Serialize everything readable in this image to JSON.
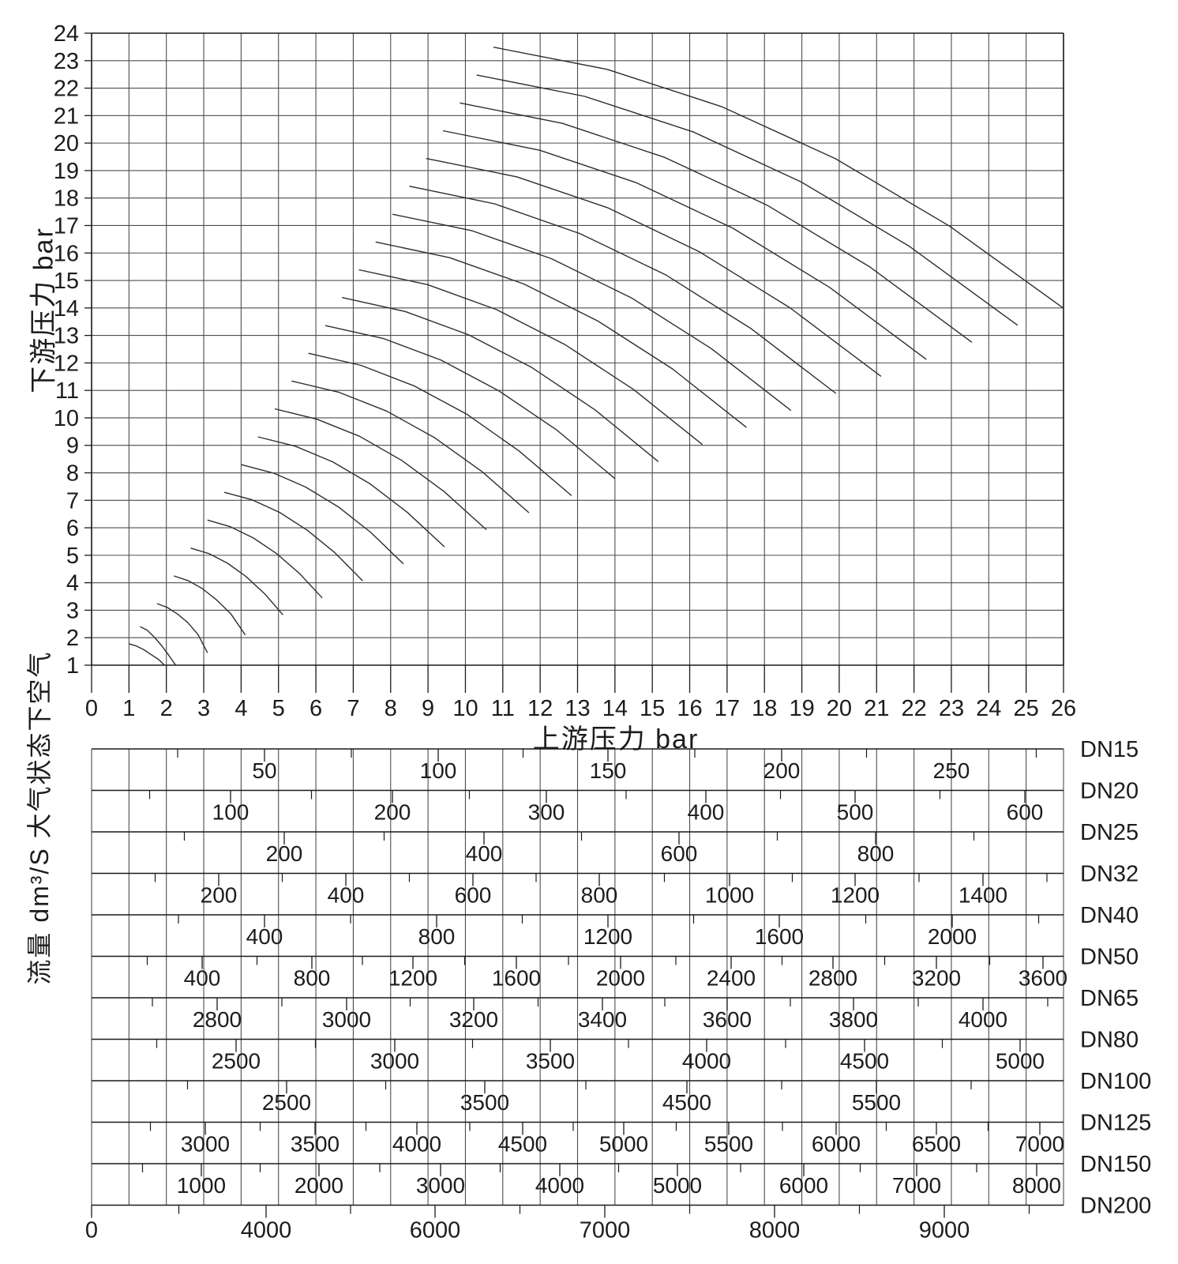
{
  "top_chart": {
    "y_title": "下游压力 bar",
    "x_title": "上游压力 bar",
    "x_ticks": [
      "0",
      "1",
      "2",
      "3",
      "4",
      "5",
      "6",
      "7",
      "8",
      "9",
      "10",
      "11",
      "12",
      "13",
      "14",
      "15",
      "16",
      "17",
      "18",
      "19",
      "20",
      "21",
      "22",
      "23",
      "24",
      "25",
      "26"
    ],
    "y_ticks": [
      "24",
      "23",
      "22",
      "21",
      "20",
      "19",
      "18",
      "17",
      "16",
      "15",
      "14",
      "13",
      "12",
      "11",
      "10",
      "9",
      "8",
      "7",
      "6",
      "5",
      "4",
      "3",
      "2",
      "1"
    ]
  },
  "chart_data": {
    "type": "line",
    "title": "",
    "xlabel": "上游压力 bar",
    "ylabel": "下游压力 bar",
    "xlim": [
      0,
      26
    ],
    "ylim": [
      1,
      24
    ],
    "grid": true,
    "legend": "none",
    "curves": [
      {
        "points": [
          [
            1.0,
            1.78
          ],
          [
            1.2,
            1.7
          ],
          [
            1.4,
            1.56
          ],
          [
            1.6,
            1.38
          ],
          [
            1.8,
            1.2
          ],
          [
            1.95,
            1.0
          ]
        ]
      },
      {
        "points": [
          [
            1.3,
            2.4
          ],
          [
            1.49,
            2.27
          ],
          [
            1.68,
            2.02
          ],
          [
            1.87,
            1.72
          ],
          [
            2.06,
            1.37
          ],
          [
            2.25,
            1.0
          ]
        ]
      },
      {
        "points": [
          [
            1.75,
            3.24
          ],
          [
            2.03,
            3.1
          ],
          [
            2.3,
            2.86
          ],
          [
            2.58,
            2.54
          ],
          [
            2.85,
            2.11
          ],
          [
            3.1,
            1.45
          ]
        ]
      },
      {
        "points": [
          [
            2.2,
            4.25
          ],
          [
            2.58,
            4.08
          ],
          [
            2.96,
            3.79
          ],
          [
            3.34,
            3.38
          ],
          [
            3.73,
            2.86
          ],
          [
            4.11,
            2.1
          ]
        ]
      },
      {
        "points": [
          [
            2.65,
            5.26
          ],
          [
            3.14,
            5.06
          ],
          [
            3.64,
            4.71
          ],
          [
            4.13,
            4.23
          ],
          [
            4.63,
            3.6
          ],
          [
            5.12,
            2.83
          ]
        ]
      },
      {
        "points": [
          [
            3.1,
            6.28
          ],
          [
            3.71,
            6.04
          ],
          [
            4.33,
            5.63
          ],
          [
            4.94,
            5.07
          ],
          [
            5.56,
            4.34
          ],
          [
            6.17,
            3.45
          ]
        ]
      },
      {
        "points": [
          [
            3.55,
            7.29
          ],
          [
            4.29,
            7.02
          ],
          [
            5.03,
            6.56
          ],
          [
            5.77,
            5.91
          ],
          [
            6.51,
            5.09
          ],
          [
            7.25,
            4.07
          ]
        ]
      },
      {
        "points": [
          [
            4.0,
            8.3
          ],
          [
            4.87,
            7.99
          ],
          [
            5.73,
            7.48
          ],
          [
            6.6,
            6.76
          ],
          [
            7.47,
            5.83
          ],
          [
            8.34,
            4.69
          ]
        ]
      },
      {
        "points": [
          [
            4.45,
            9.31
          ],
          [
            5.45,
            8.97
          ],
          [
            6.45,
            8.4
          ],
          [
            7.45,
            7.6
          ],
          [
            8.44,
            6.57
          ],
          [
            9.44,
            5.31
          ]
        ]
      },
      {
        "points": [
          [
            4.9,
            10.33
          ],
          [
            6.03,
            9.95
          ],
          [
            7.17,
            9.33
          ],
          [
            8.3,
            8.45
          ],
          [
            9.43,
            7.32
          ],
          [
            10.56,
            5.93
          ]
        ]
      },
      {
        "points": [
          [
            5.35,
            11.34
          ],
          [
            6.62,
            10.93
          ],
          [
            7.89,
            10.25
          ],
          [
            9.16,
            9.29
          ],
          [
            10.43,
            8.06
          ],
          [
            11.7,
            6.55
          ]
        ]
      },
      {
        "points": [
          [
            5.8,
            12.35
          ],
          [
            7.21,
            11.91
          ],
          [
            8.62,
            11.17
          ],
          [
            10.03,
            10.14
          ],
          [
            11.43,
            8.8
          ],
          [
            12.84,
            7.17
          ]
        ]
      },
      {
        "points": [
          [
            6.25,
            13.36
          ],
          [
            7.8,
            12.89
          ],
          [
            9.35,
            12.1
          ],
          [
            10.9,
            10.98
          ],
          [
            12.45,
            9.55
          ],
          [
            14.0,
            7.79
          ]
        ]
      },
      {
        "points": [
          [
            6.7,
            14.38
          ],
          [
            8.39,
            13.87
          ],
          [
            10.09,
            13.02
          ],
          [
            11.78,
            11.83
          ],
          [
            13.47,
            10.29
          ],
          [
            15.16,
            8.41
          ]
        ]
      },
      {
        "points": [
          [
            7.15,
            15.39
          ],
          [
            8.99,
            14.85
          ],
          [
            10.83,
            13.94
          ],
          [
            12.66,
            12.67
          ],
          [
            14.5,
            11.03
          ],
          [
            16.34,
            9.03
          ]
        ]
      },
      {
        "points": [
          [
            7.6,
            16.4
          ],
          [
            9.58,
            15.83
          ],
          [
            11.57,
            14.87
          ],
          [
            13.55,
            13.52
          ],
          [
            15.54,
            11.78
          ],
          [
            17.52,
            9.65
          ]
        ]
      },
      {
        "points": [
          [
            8.05,
            17.41
          ],
          [
            10.18,
            16.81
          ],
          [
            12.31,
            15.79
          ],
          [
            14.45,
            14.36
          ],
          [
            16.58,
            12.52
          ],
          [
            18.71,
            10.27
          ]
        ]
      },
      {
        "points": [
          [
            8.5,
            18.43
          ],
          [
            10.78,
            17.79
          ],
          [
            13.06,
            16.71
          ],
          [
            15.35,
            15.21
          ],
          [
            17.63,
            13.26
          ],
          [
            19.91,
            10.89
          ]
        ]
      },
      {
        "points": [
          [
            8.95,
            19.44
          ],
          [
            11.38,
            18.77
          ],
          [
            13.82,
            17.64
          ],
          [
            16.25,
            16.05
          ],
          [
            18.68,
            14.01
          ],
          [
            21.12,
            11.51
          ]
        ]
      },
      {
        "points": [
          [
            9.4,
            20.45
          ],
          [
            11.99,
            19.74
          ],
          [
            14.57,
            18.56
          ],
          [
            17.16,
            16.9
          ],
          [
            19.74,
            14.75
          ],
          [
            22.33,
            12.13
          ]
        ]
      },
      {
        "points": [
          [
            9.85,
            21.46
          ],
          [
            12.59,
            20.72
          ],
          [
            15.33,
            19.48
          ],
          [
            18.07,
            17.74
          ],
          [
            20.81,
            15.5
          ],
          [
            23.55,
            12.75
          ]
        ]
      },
      {
        "points": [
          [
            10.3,
            22.48
          ],
          [
            13.19,
            21.7
          ],
          [
            16.09,
            20.41
          ],
          [
            18.98,
            18.59
          ],
          [
            21.88,
            16.24
          ],
          [
            24.77,
            13.37
          ]
        ]
      },
      {
        "points": [
          [
            10.75,
            23.49
          ],
          [
            13.8,
            22.68
          ],
          [
            16.85,
            21.33
          ],
          [
            19.9,
            19.43
          ],
          [
            22.95,
            16.98
          ],
          [
            26.0,
            13.99
          ]
        ]
      }
    ]
  },
  "flow_axis": {
    "title": "流量 dm³/S 大气状态下空气",
    "scales": [
      {
        "dn": "DN15",
        "labels": [
          [
            "50",
            335
          ],
          [
            "100",
            555
          ],
          [
            "150",
            770
          ],
          [
            "200",
            990
          ],
          [
            "250",
            1205
          ]
        ]
      },
      {
        "dn": "DN20",
        "labels": [
          [
            "100",
            292
          ],
          [
            "200",
            497
          ],
          [
            "300",
            692
          ],
          [
            "400",
            894
          ],
          [
            "500",
            1083
          ],
          [
            "600",
            1298
          ]
        ]
      },
      {
        "dn": "DN25",
        "labels": [
          [
            "200",
            360
          ],
          [
            "400",
            613
          ],
          [
            "600",
            860
          ],
          [
            "800",
            1109
          ]
        ]
      },
      {
        "dn": "DN32",
        "labels": [
          [
            "200",
            277
          ],
          [
            "400",
            438
          ],
          [
            "600",
            599
          ],
          [
            "800",
            759
          ],
          [
            "1000",
            924
          ],
          [
            "1200",
            1083
          ],
          [
            "1400",
            1245
          ]
        ]
      },
      {
        "dn": "DN40",
        "labels": [
          [
            "400",
            335
          ],
          [
            "800",
            553
          ],
          [
            "1200",
            770
          ],
          [
            "1600",
            987
          ],
          [
            "2000",
            1206
          ]
        ]
      },
      {
        "dn": "DN50",
        "labels": [
          [
            "400",
            256
          ],
          [
            "800",
            395
          ],
          [
            "1200",
            523
          ],
          [
            "1600",
            654
          ],
          [
            "2000",
            786
          ],
          [
            "2400",
            926
          ],
          [
            "2800",
            1055
          ],
          [
            "3200",
            1186
          ],
          [
            "3600",
            1321
          ]
        ]
      },
      {
        "dn": "DN65",
        "labels": [
          [
            "2800",
            275
          ],
          [
            "3000",
            439
          ],
          [
            "3200",
            600
          ],
          [
            "3400",
            763
          ],
          [
            "3600",
            921
          ],
          [
            "3800",
            1081
          ],
          [
            "4000",
            1245
          ]
        ]
      },
      {
        "dn": "DN80",
        "labels": [
          [
            "2500",
            299
          ],
          [
            "3000",
            500
          ],
          [
            "3500",
            697
          ],
          [
            "4000",
            895
          ],
          [
            "4500",
            1095
          ],
          [
            "5000",
            1292
          ]
        ]
      },
      {
        "dn": "DN100",
        "labels": [
          [
            "2500",
            363
          ],
          [
            "3500",
            614
          ],
          [
            "4500",
            870
          ],
          [
            "5500",
            1110
          ]
        ]
      },
      {
        "dn": "DN125",
        "labels": [
          [
            "3000",
            260
          ],
          [
            "3500",
            399
          ],
          [
            "4000",
            528
          ],
          [
            "4500",
            662
          ],
          [
            "5000",
            790
          ],
          [
            "5500",
            923
          ],
          [
            "6000",
            1059
          ],
          [
            "6500",
            1186
          ],
          [
            "7000",
            1317
          ]
        ]
      },
      {
        "dn": "DN150",
        "labels": [
          [
            "1000",
            255
          ],
          [
            "2000",
            404
          ],
          [
            "3000",
            558
          ],
          [
            "4000",
            709
          ],
          [
            "5000",
            858
          ],
          [
            "6000",
            1018
          ],
          [
            "7000",
            1161
          ],
          [
            "8000",
            1313
          ]
        ]
      },
      {
        "dn": "DN200",
        "labels": [
          [
            "0",
            116
          ],
          [
            "4000",
            337
          ],
          [
            "6000",
            551
          ],
          [
            "7000",
            766
          ],
          [
            "8000",
            981
          ],
          [
            "9000",
            1196
          ]
        ],
        "below_line": true
      }
    ]
  },
  "colors": {
    "background": "#ffffff",
    "grid": "#4d4d4d",
    "frame": "#1a1a1a",
    "curve": "#2e2e2e",
    "text": "#1c1c1c"
  }
}
